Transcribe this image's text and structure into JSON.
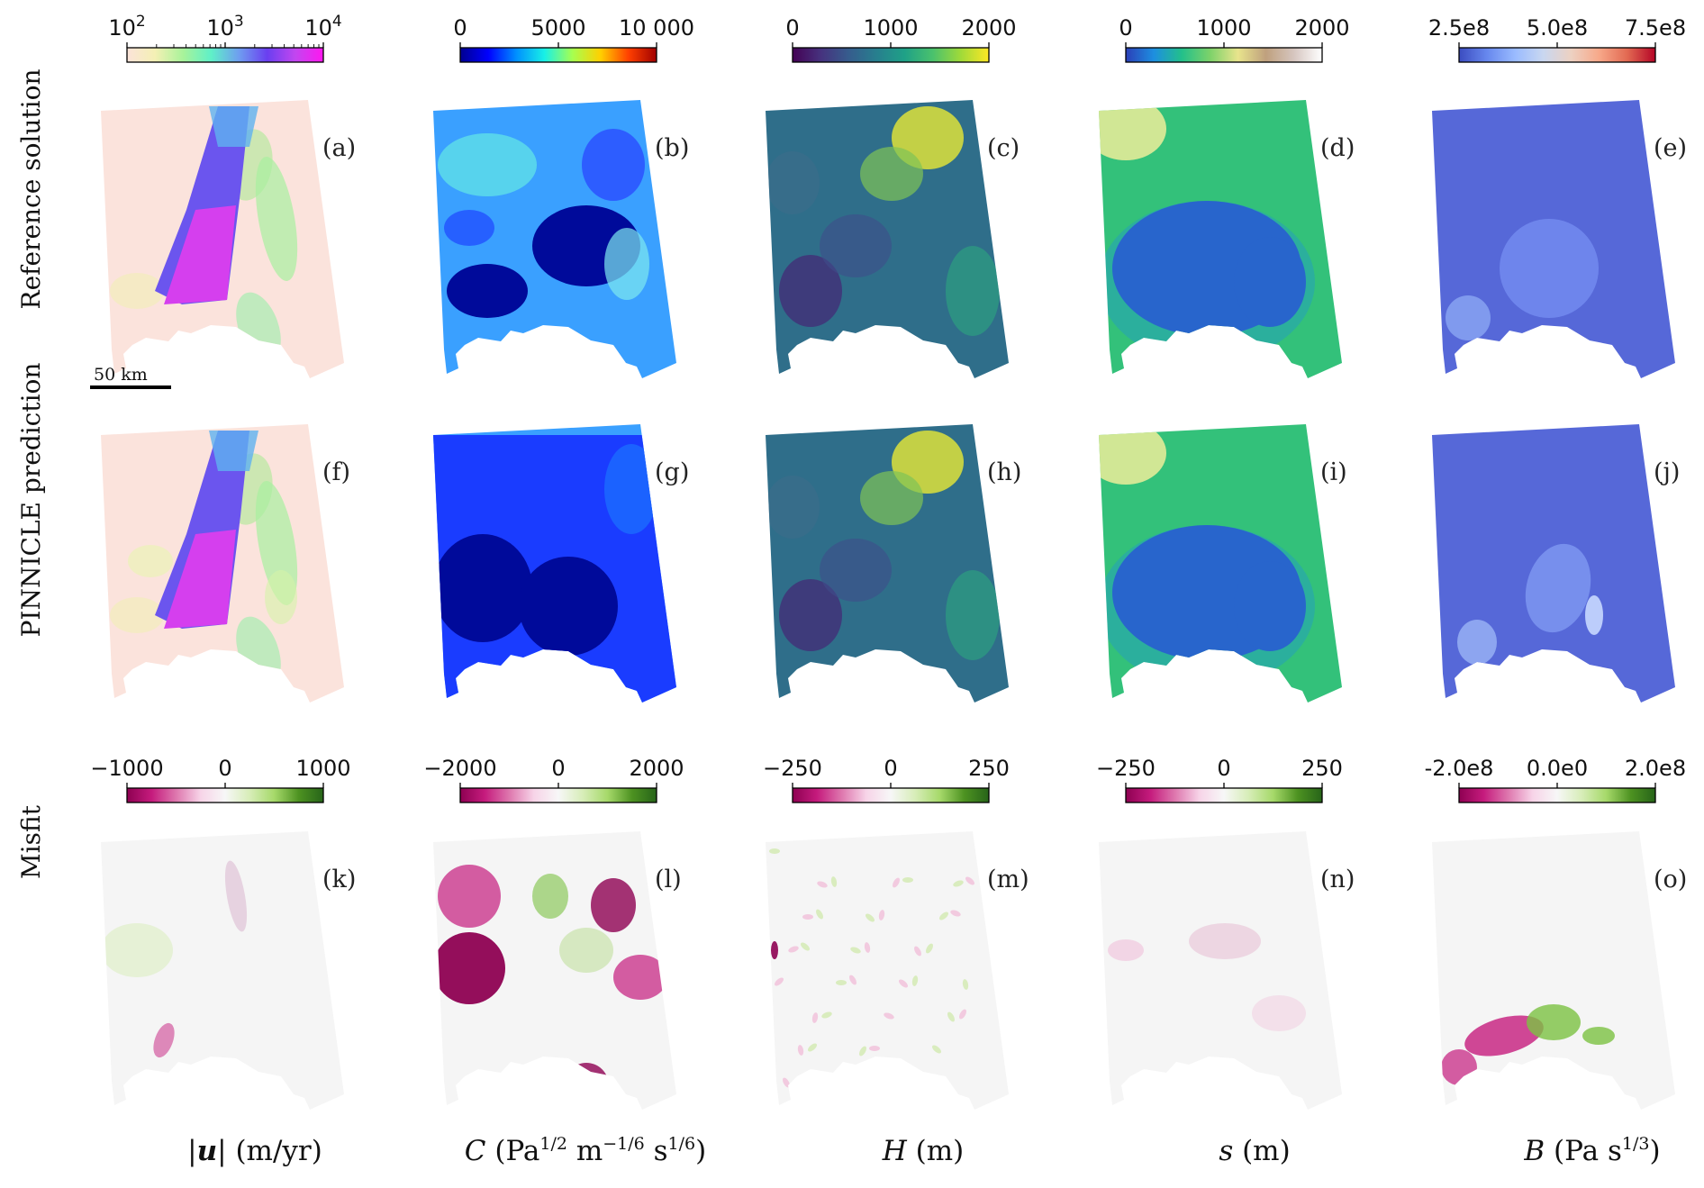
{
  "row_labels": [
    "Reference solution",
    "PINNICLE prediction",
    "Misfit"
  ],
  "columns": [
    {
      "id": "u",
      "label": {
        "pre": "|",
        "var": "u",
        "post": "| (m/yr)"
      },
      "top_bar": {
        "scale": "log",
        "ticks": [
          {
            "base": "10",
            "exp": "2"
          },
          {
            "base": "10",
            "exp": "3"
          },
          {
            "base": "10",
            "exp": "4"
          }
        ],
        "colors": [
          "#fbe3da",
          "#f4f0b4",
          "#a8f39a",
          "#5ff0c8",
          "#6f9df0",
          "#6a3ff0",
          "#c246f0",
          "#ff17f0"
        ]
      },
      "misfit_bar": {
        "ticks": [
          "−1000",
          "0",
          "1000"
        ]
      }
    },
    {
      "id": "C",
      "label": {
        "var": "C",
        "post": " (Pa",
        "sup1": "1/2",
        "mid1": " m",
        "sup2": "−1/6",
        "mid2": " s",
        "sup3": "1/6",
        "end": ")"
      },
      "top_bar": {
        "scale": "linear",
        "ticks": [
          "0",
          "5000",
          "10 000"
        ],
        "colors": [
          "#000090",
          "#0000ff",
          "#0090ff",
          "#18f0e6",
          "#a6ff50",
          "#ffd000",
          "#ff4000",
          "#a00000"
        ]
      },
      "misfit_bar": {
        "ticks": [
          "−2000",
          "0",
          "2000"
        ]
      }
    },
    {
      "id": "H",
      "label": {
        "var": "H",
        "post": " (m)"
      },
      "top_bar": {
        "scale": "linear",
        "ticks": [
          "0",
          "1000",
          "2000"
        ],
        "colors": [
          "#440154",
          "#46327e",
          "#365c8d",
          "#277f8e",
          "#1fa187",
          "#4ac16d",
          "#a0da39",
          "#fde725"
        ]
      },
      "misfit_bar": {
        "ticks": [
          "−250",
          "0",
          "250"
        ]
      }
    },
    {
      "id": "s",
      "label": {
        "var": "s",
        "post": " (m)"
      },
      "top_bar": {
        "scale": "linear",
        "ticks": [
          "0",
          "1000",
          "2000"
        ],
        "colors": [
          "#2b3fb8",
          "#1d8fe0",
          "#23c08a",
          "#7dd26a",
          "#e8e48c",
          "#bfa07e",
          "#d6c6c0",
          "#ffffff"
        ]
      },
      "misfit_bar": {
        "ticks": [
          "−250",
          "0",
          "250"
        ]
      }
    },
    {
      "id": "B",
      "label": {
        "var": "B",
        "post": " (Pa s",
        "sup1": "1/3",
        "end": ")"
      },
      "top_bar": {
        "scale": "linear",
        "ticks": [
          "2.5e8",
          "5.0e8",
          "7.5e8"
        ],
        "colors": [
          "#3b4cc0",
          "#6788ee",
          "#9abbff",
          "#c9d7f0",
          "#edd1c2",
          "#f7a889",
          "#e26952",
          "#b40426"
        ]
      },
      "misfit_bar": {
        "ticks": [
          "-2.0e8",
          "0.0e0",
          "2.0e8"
        ]
      }
    }
  ],
  "misfit_colors": [
    "#8e0152",
    "#c51b7d",
    "#de77ae",
    "#f7d4e8",
    "#f7f7f7",
    "#d7edb8",
    "#a6d96a",
    "#4d9221",
    "#276419"
  ],
  "panel_letters": [
    "(a)",
    "(b)",
    "(c)",
    "(d)",
    "(e)",
    "(f)",
    "(g)",
    "(h)",
    "(i)",
    "(j)",
    "(k)",
    "(l)",
    "(m)",
    "(n)",
    "(o)"
  ],
  "scale_bar": {
    "label": "50 km"
  }
}
